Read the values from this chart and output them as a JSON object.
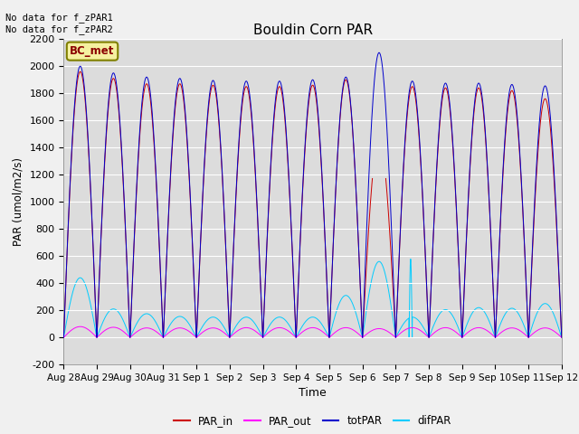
{
  "title": "Bouldin Corn PAR",
  "ylabel": "PAR (umol/m2/s)",
  "xlabel": "Time",
  "annotation_text": "No data for f_zPAR1\nNo data for f_zPAR2",
  "legend_label": "BC_met",
  "ylim": [
    -200,
    2200
  ],
  "yticks": [
    -200,
    0,
    200,
    400,
    600,
    800,
    1000,
    1200,
    1400,
    1600,
    1800,
    2000,
    2200
  ],
  "background_color": "#dcdcdc",
  "fig_facecolor": "#f0f0f0",
  "series_colors": {
    "PAR_in": "#cc0000",
    "PAR_out": "#ff00ff",
    "totPAR": "#0000cc",
    "difPAR": "#00ccff"
  },
  "x_tick_labels": [
    "Aug 28",
    "Aug 29",
    "Aug 30",
    "Aug 31",
    "Sep 1",
    "Sep 2",
    "Sep 3",
    "Sep 4",
    "Sep 5",
    "Sep 6",
    "Sep 7",
    "Sep 8",
    "Sep 9",
    "Sep 10",
    "Sep 11",
    "Sep 12"
  ],
  "x_tick_positions": [
    0,
    1,
    2,
    3,
    4,
    5,
    6,
    7,
    8,
    9,
    10,
    11,
    12,
    13,
    14,
    15
  ],
  "day_params": [
    {
      "tot": 2000,
      "par_in": 1960,
      "par_out": 80,
      "dif": 440
    },
    {
      "tot": 1950,
      "par_in": 1910,
      "par_out": 75,
      "dif": 210
    },
    {
      "tot": 1920,
      "par_in": 1870,
      "par_out": 70,
      "dif": 175
    },
    {
      "tot": 1910,
      "par_in": 1870,
      "par_out": 70,
      "dif": 155
    },
    {
      "tot": 1895,
      "par_in": 1860,
      "par_out": 70,
      "dif": 150
    },
    {
      "tot": 1890,
      "par_in": 1850,
      "par_out": 72,
      "dif": 150
    },
    {
      "tot": 1890,
      "par_in": 1850,
      "par_out": 72,
      "dif": 150
    },
    {
      "tot": 1900,
      "par_in": 1860,
      "par_out": 72,
      "dif": 150
    },
    {
      "tot": 1920,
      "par_in": 1900,
      "par_out": 72,
      "dif": 310
    },
    {
      "tot": 2100,
      "par_in": 1460,
      "par_out": 65,
      "dif": 560
    },
    {
      "tot": 1890,
      "par_in": 1850,
      "par_out": 72,
      "dif": 150
    },
    {
      "tot": 1875,
      "par_in": 1840,
      "par_out": 72,
      "dif": 205
    },
    {
      "tot": 1875,
      "par_in": 1840,
      "par_out": 72,
      "dif": 220
    },
    {
      "tot": 1865,
      "par_in": 1820,
      "par_out": 70,
      "dif": 215
    },
    {
      "tot": 1855,
      "par_in": 1760,
      "par_out": 70,
      "dif": 250
    }
  ]
}
